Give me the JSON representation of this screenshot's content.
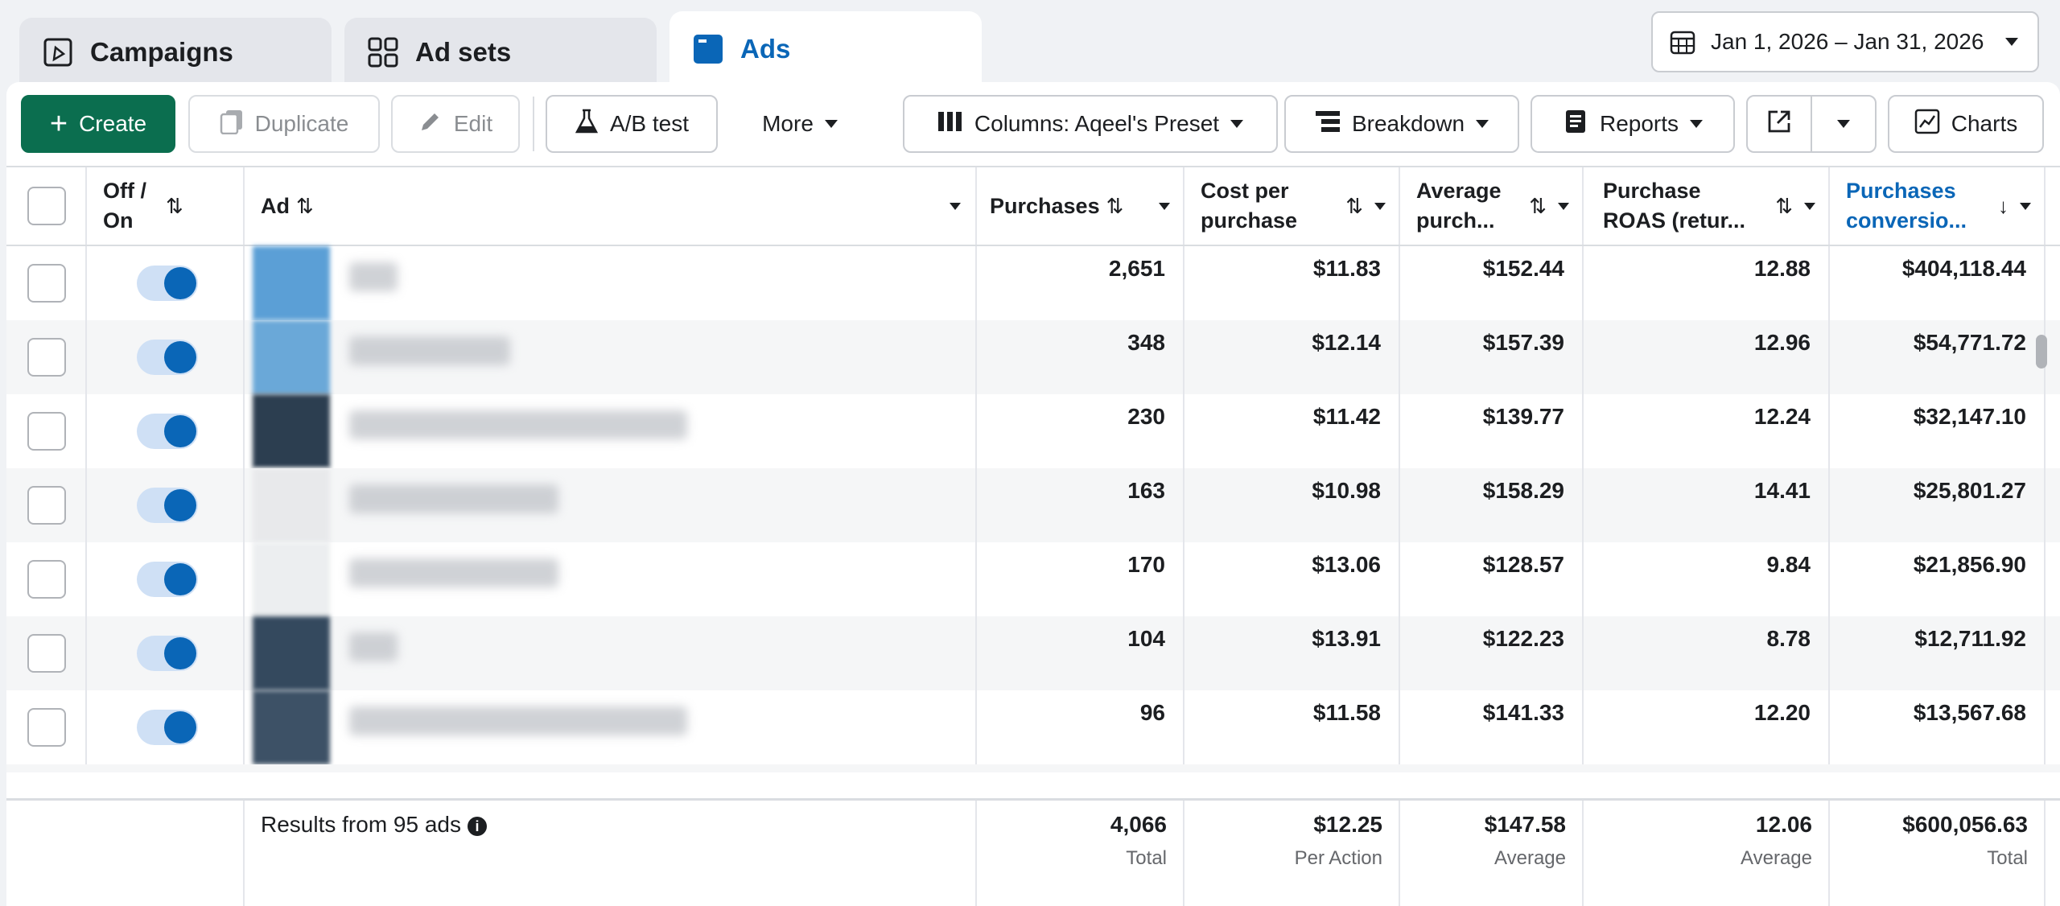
{
  "tabs": {
    "campaigns": "Campaigns",
    "adsets": "Ad sets",
    "ads": "Ads"
  },
  "date_range": "Jan 1, 2026 – Jan 31, 2026",
  "toolbar": {
    "create": "Create",
    "duplicate": "Duplicate",
    "edit": "Edit",
    "ab_test": "A/B test",
    "more": "More",
    "columns": "Columns: Aqeel's Preset",
    "breakdown": "Breakdown",
    "reports": "Reports",
    "charts": "Charts"
  },
  "columns": {
    "off_on": "Off /\nOn",
    "ad": "Ad",
    "purchases": "Purchases",
    "cost_per_purchase": "Cost per\npurchase",
    "avg_purchase": "Average\npurch...",
    "roas": "Purchase\nROAS (retur...",
    "conversion": "Purchases\nconversio..."
  },
  "rows": [
    {
      "purchases": "2,651",
      "cost": "$11.83",
      "avg": "$152.44",
      "roas": "12.88",
      "conv": "$404,118.44"
    },
    {
      "purchases": "348",
      "cost": "$12.14",
      "avg": "$157.39",
      "roas": "12.96",
      "conv": "$54,771.72"
    },
    {
      "purchases": "230",
      "cost": "$11.42",
      "avg": "$139.77",
      "roas": "12.24",
      "conv": "$32,147.10"
    },
    {
      "purchases": "163",
      "cost": "$10.98",
      "avg": "$158.29",
      "roas": "14.41",
      "conv": "$25,801.27"
    },
    {
      "purchases": "170",
      "cost": "$13.06",
      "avg": "$128.57",
      "roas": "9.84",
      "conv": "$21,856.90"
    },
    {
      "purchases": "104",
      "cost": "$13.91",
      "avg": "$122.23",
      "roas": "8.78",
      "conv": "$12,711.92"
    },
    {
      "purchases": "96",
      "cost": "$11.58",
      "avg": "$141.33",
      "roas": "12.20",
      "conv": "$13,567.68"
    }
  ],
  "footer": {
    "results": "Results from 95 ads",
    "purchases": "4,066",
    "purchases_sub": "Total",
    "cost": "$12.25",
    "cost_sub": "Per Action",
    "avg": "$147.58",
    "avg_sub": "Average",
    "roas": "12.06",
    "roas_sub": "Average",
    "conv": "$600,056.63",
    "conv_sub": "Total"
  },
  "icons": {
    "info": "i"
  },
  "colors": {
    "accent": "#0a66b7",
    "create": "#0b6e4f"
  }
}
